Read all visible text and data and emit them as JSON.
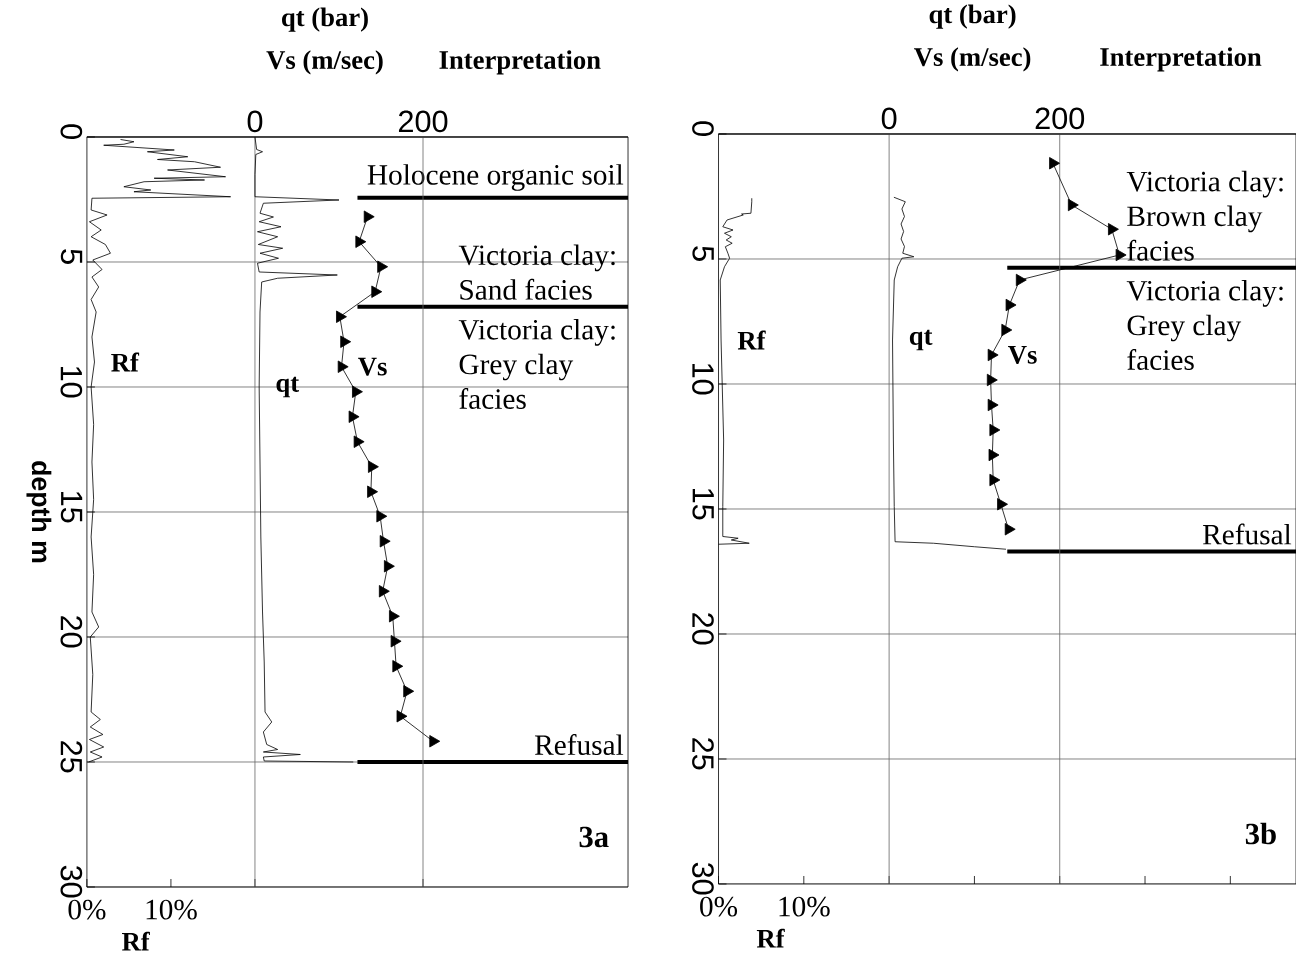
{
  "chart_data": [
    {
      "type": "line",
      "title": "3a",
      "xlabel": "Rf",
      "x2label": "qt (bar)",
      "ylabel": "depth m",
      "annotations": [
        "Vs (m/sec)",
        "Interpretation",
        "Victoria clay: Grey clay facies"
      ],
      "xlim": [
        0,
        64.4
      ],
      "xticks": [
        {
          "value": 0,
          "label": "0%"
        },
        {
          "value": 10,
          "label": "10%"
        },
        {
          "value": 20,
          "label": null
        },
        {
          "value": 40,
          "label": null
        }
      ],
      "x2lim": [
        -200,
        444
      ],
      "x2ticks": [
        0,
        200
      ],
      "ylim": [
        30,
        0
      ],
      "yticks": [
        0,
        5,
        10,
        15,
        20,
        25,
        30
      ],
      "grid": true,
      "series": [
        {
          "name": "Rf",
          "color": "#000000",
          "x": [
            4.0,
            5.6,
            4.4,
            2.0,
            10.4,
            7.2,
            12.0,
            8.4,
            12.8,
            15.9,
            9.6,
            16.5,
            8.0,
            14.0,
            6.8,
            4.4,
            7.6,
            5.6,
            17.1,
            0.6,
            0.5,
            2.4,
            0.3,
            1.7,
            0.5,
            2.2,
            2.8,
            0.7,
            1.8,
            0.6,
            1.4,
            0.5,
            1.1,
            0.6,
            0.9,
            0.5,
            0.8,
            0.6,
            0.8,
            0.5,
            0.8,
            0.6,
            1.4,
            0.4,
            0.7,
            0.5,
            1.6,
            0.4,
            1.9,
            0.3,
            2.0,
            0.4,
            1.8,
            0.2
          ],
          "values": [
            0.1,
            0.19,
            0.29,
            0.33,
            0.52,
            0.59,
            0.79,
            0.9,
            0.99,
            1.21,
            1.32,
            1.59,
            1.65,
            1.72,
            1.79,
            1.99,
            2.12,
            2.19,
            2.39,
            2.45,
            2.92,
            3.12,
            3.39,
            3.72,
            3.99,
            4.3,
            4.65,
            4.92,
            5.3,
            5.6,
            6.0,
            6.5,
            7.0,
            8.0,
            9.0,
            10.0,
            11.5,
            13.0,
            14.5,
            16.0,
            17.5,
            19.0,
            19.6,
            20.0,
            21.5,
            23.0,
            23.3,
            23.6,
            23.9,
            24.1,
            24.4,
            24.6,
            24.8,
            25.0
          ]
        },
        {
          "name": "qt",
          "axis": "x2",
          "color": "#000000",
          "x": [
            0,
            2,
            9,
            1,
            0,
            0,
            100,
            10,
            6,
            22,
            5,
            31,
            3,
            27,
            4,
            33,
            6,
            28,
            3,
            5,
            98,
            27,
            8,
            6,
            5,
            6,
            7,
            9,
            11,
            12,
            20,
            10,
            14,
            27,
            10,
            54,
            10,
            11,
            117
          ],
          "values": [
            0,
            0.5,
            0.59,
            0.7,
            1.5,
            2.39,
            2.52,
            2.65,
            3.05,
            3.2,
            3.39,
            3.59,
            3.79,
            3.99,
            4.3,
            4.45,
            4.65,
            4.85,
            5.05,
            5.4,
            5.52,
            5.65,
            5.8,
            7,
            10,
            13,
            16,
            19,
            21,
            23,
            23.4,
            23.8,
            24.3,
            24.5,
            24.6,
            24.7,
            24.8,
            24.96,
            25.0
          ]
        },
        {
          "name": "Vs",
          "axis": "x2",
          "marker": "triangle",
          "color": "#000000",
          "x": [
            134,
            124,
            150,
            143,
            101,
            106,
            103,
            120,
            116,
            122,
            139,
            138,
            149,
            153,
            158,
            152,
            164,
            166,
            168,
            181,
            173,
            212
          ],
          "values": [
            3.19,
            4.19,
            5.19,
            6.19,
            7.19,
            8.19,
            9.19,
            10.19,
            11.19,
            12.19,
            13.19,
            14.19,
            15.17,
            16.17,
            17.17,
            18.17,
            19.17,
            20.17,
            21.17,
            22.17,
            23.17,
            24.17
          ]
        }
      ],
      "ref_lines": [
        {
          "axis": "y",
          "value": 2.43,
          "label": "Holocene organic soil",
          "color": "#000000"
        },
        {
          "axis": "y",
          "value": 6.79,
          "label": "Victoria clay: Sand facies",
          "color": "#000000"
        },
        {
          "axis": "y",
          "value": 25.0,
          "label": "Refusal",
          "color": "#000000"
        }
      ]
    },
    {
      "type": "line",
      "title": "3b",
      "xlabel": "Rf",
      "x2label": "qt (bar)",
      "annotations": [
        "Vs (m/sec)",
        "Interpretation",
        "Victoria clay: Grey clay facies"
      ],
      "xlim": [
        0,
        67.7
      ],
      "xticks": [
        {
          "value": 0,
          "label": "0%"
        },
        {
          "value": 10,
          "label": "10%"
        },
        {
          "value": 20,
          "label": null
        },
        {
          "value": 30,
          "label": null
        },
        {
          "value": 40,
          "label": null
        },
        {
          "value": 50,
          "label": null
        },
        {
          "value": 60,
          "label": null
        }
      ],
      "x2lim": [
        -200,
        477
      ],
      "x2ticks": [
        0,
        200
      ],
      "ylim": [
        30,
        0
      ],
      "yticks": [
        0,
        5,
        10,
        15,
        20,
        25,
        30
      ],
      "grid": true,
      "series": [
        {
          "name": "Rf",
          "color": "#000000",
          "x": [
            3.9,
            3.9,
            3.8,
            2.7,
            2.9,
            1.0,
            0.5,
            1.7,
            0.7,
            1.5,
            0.9,
            1.6,
            0.8,
            1.1,
            1.3,
            0.7,
            0.2,
            0.3,
            0.6,
            0.5,
            0.5,
            2.3,
            1.5,
            3.6,
            0.0
          ],
          "values": [
            2.57,
            2.71,
            3.17,
            3.2,
            3.24,
            3.44,
            3.71,
            3.84,
            3.97,
            4.11,
            4.24,
            4.37,
            4.51,
            4.77,
            4.97,
            5.31,
            5.84,
            8.24,
            12.24,
            14.9,
            16.1,
            16.17,
            16.24,
            16.37,
            16.41
          ]
        },
        {
          "name": "qt",
          "axis": "x2",
          "color": "#000000",
          "x": [
            5.6,
            19,
            15,
            18,
            14,
            17,
            14,
            18,
            16,
            29,
            15,
            10,
            6,
            4,
            5,
            6,
            7,
            52,
            100,
            137
          ],
          "values": [
            2.53,
            2.71,
            3.0,
            3.3,
            3.6,
            3.9,
            4.2,
            4.5,
            4.77,
            4.91,
            4.97,
            5.31,
            5.84,
            8.24,
            12.24,
            14.9,
            16.31,
            16.37,
            16.51,
            16.61
          ]
        },
        {
          "name": "Vs",
          "axis": "x2",
          "marker": "triangle",
          "color": "#000000",
          "x": [
            192,
            214,
            261,
            270,
            153,
            141,
            136,
            120,
            119,
            120,
            122,
            121,
            122,
            131,
            140
          ],
          "values": [
            1.17,
            2.84,
            3.81,
            4.84,
            5.84,
            6.84,
            7.84,
            8.84,
            9.84,
            10.84,
            11.84,
            12.84,
            13.84,
            14.81,
            15.81
          ]
        }
      ],
      "ref_lines": [
        {
          "axis": "y",
          "value": 5.35,
          "label": "Victoria clay: Brown clay facies",
          "color": "#000000"
        },
        {
          "axis": "y",
          "value": 16.7,
          "label": "Refusal",
          "color": "#000000"
        }
      ]
    }
  ]
}
